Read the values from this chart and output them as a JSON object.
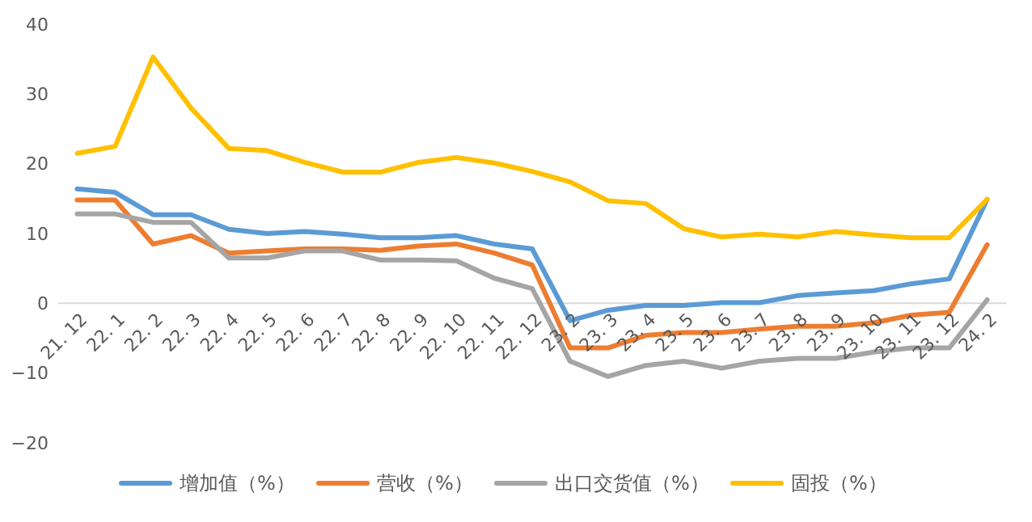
{
  "chart_data": {
    "type": "line",
    "categories": [
      "21. 12",
      "22. 1",
      "22. 2",
      "22. 3",
      "22. 4",
      "22. 5",
      "22. 6",
      "22. 7",
      "22. 8",
      "22. 9",
      "22. 10",
      "22. 11",
      "22. 12",
      "23. 2",
      "23. 3",
      "23. 4",
      "23. 5",
      "23. 6",
      "23. 7",
      "23. 8",
      "23. 9",
      "23. 10",
      "23. 11",
      "23. 12",
      "24. 2"
    ],
    "series": [
      {
        "name": "增加值（%）",
        "color": "#5b9bd5",
        "values": [
          16.4,
          15.9,
          12.7,
          12.7,
          10.6,
          10.0,
          10.3,
          9.9,
          9.4,
          9.4,
          9.7,
          8.5,
          7.8,
          -2.5,
          -1.0,
          -0.3,
          -0.3,
          0.1,
          0.1,
          1.1,
          1.5,
          1.8,
          2.8,
          3.5,
          14.9
        ]
      },
      {
        "name": "营收（%）",
        "color": "#ed7d31",
        "values": [
          14.8,
          14.8,
          8.5,
          9.7,
          7.2,
          7.5,
          7.8,
          7.8,
          7.6,
          8.2,
          8.5,
          7.2,
          5.5,
          -6.4,
          -6.4,
          -4.6,
          -4.2,
          -4.2,
          -3.7,
          -3.3,
          -3.3,
          -2.8,
          -1.7,
          -1.3,
          8.4
        ]
      },
      {
        "name": "出口交货值（%）",
        "color": "#a5a5a5",
        "values": [
          12.8,
          12.8,
          11.6,
          11.6,
          6.5,
          6.5,
          7.5,
          7.5,
          6.2,
          6.2,
          6.1,
          3.6,
          2.1,
          -8.3,
          -10.5,
          -8.9,
          -8.3,
          -9.3,
          -8.3,
          -7.9,
          -7.9,
          -7.0,
          -6.4,
          -6.4,
          0.5
        ]
      },
      {
        "name": "固投（%）",
        "color": "#ffc000",
        "values": [
          21.5,
          22.5,
          35.3,
          28.0,
          22.2,
          21.9,
          20.2,
          18.8,
          18.8,
          20.2,
          20.9,
          20.1,
          18.9,
          17.4,
          14.7,
          14.3,
          10.7,
          9.5,
          9.9,
          9.5,
          10.3,
          9.8,
          9.4,
          9.4,
          14.9
        ]
      }
    ],
    "ylim": [
      -20,
      40
    ],
    "yticks": [
      -20,
      -10,
      0,
      10,
      20,
      30,
      40
    ],
    "legend": "bottom",
    "line_style": "solid"
  }
}
